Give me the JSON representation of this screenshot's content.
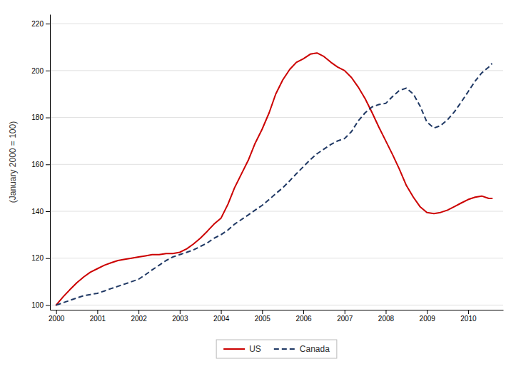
{
  "chart_data": {
    "type": "line",
    "ylabel": "(January 2000 = 100)",
    "x": [
      2000.0,
      2000.17,
      2000.33,
      2000.5,
      2000.67,
      2000.83,
      2001.0,
      2001.17,
      2001.33,
      2001.5,
      2001.67,
      2001.83,
      2002.0,
      2002.17,
      2002.33,
      2002.5,
      2002.67,
      2002.83,
      2003.0,
      2003.17,
      2003.33,
      2003.5,
      2003.67,
      2003.83,
      2004.0,
      2004.17,
      2004.33,
      2004.5,
      2004.67,
      2004.83,
      2005.0,
      2005.17,
      2005.33,
      2005.5,
      2005.67,
      2005.83,
      2006.0,
      2006.17,
      2006.33,
      2006.5,
      2006.67,
      2006.83,
      2007.0,
      2007.17,
      2007.33,
      2007.5,
      2007.67,
      2007.83,
      2008.0,
      2008.17,
      2008.33,
      2008.5,
      2008.67,
      2008.83,
      2009.0,
      2009.17,
      2009.33,
      2009.5,
      2009.67,
      2009.83,
      2010.0,
      2010.17,
      2010.33,
      2010.5,
      2010.58
    ],
    "series": [
      {
        "name": "US",
        "color": "#cc0000",
        "line_style": "solid",
        "values": [
          100.0,
          103.5,
          106.5,
          109.5,
          112.0,
          114.0,
          115.5,
          117.0,
          118.0,
          119.0,
          119.5,
          120.0,
          120.5,
          121.0,
          121.5,
          121.5,
          122.0,
          122.0,
          122.5,
          124.0,
          126.0,
          128.5,
          131.5,
          134.5,
          137.0,
          143.0,
          150.0,
          156.0,
          162.0,
          169.0,
          175.0,
          182.0,
          190.0,
          196.0,
          200.5,
          203.5,
          205.0,
          207.0,
          207.5,
          206.0,
          203.5,
          201.5,
          200.0,
          197.0,
          193.0,
          188.0,
          182.0,
          176.0,
          170.0,
          164.0,
          158.0,
          151.0,
          146.0,
          142.0,
          139.5,
          139.0,
          139.5,
          140.5,
          142.0,
          143.5,
          145.0,
          146.0,
          146.5,
          145.5,
          145.5
        ]
      },
      {
        "name": "Canada",
        "color": "#1f3864",
        "line_style": "dashed",
        "values": [
          100.0,
          101.0,
          102.0,
          103.0,
          104.0,
          104.5,
          105.0,
          106.0,
          107.0,
          108.0,
          109.0,
          110.0,
          111.0,
          113.0,
          115.0,
          117.0,
          119.0,
          120.5,
          121.5,
          122.5,
          123.5,
          125.0,
          126.5,
          128.5,
          130.0,
          132.0,
          134.5,
          136.5,
          138.5,
          140.5,
          142.5,
          145.0,
          147.5,
          150.0,
          153.0,
          156.0,
          159.0,
          162.0,
          164.5,
          166.5,
          168.5,
          170.0,
          171.0,
          174.0,
          178.5,
          182.0,
          184.5,
          185.5,
          186.0,
          189.0,
          191.5,
          192.5,
          190.0,
          185.0,
          178.0,
          175.5,
          176.5,
          179.0,
          182.5,
          186.5,
          191.0,
          195.5,
          199.0,
          201.5,
          203.0
        ]
      }
    ],
    "xlim": [
      1999.85,
      2010.85
    ],
    "xticks": [
      2000,
      2001,
      2002,
      2003,
      2004,
      2005,
      2006,
      2007,
      2008,
      2009,
      2010
    ],
    "ylim": [
      98,
      224
    ],
    "yticks": [
      100,
      120,
      140,
      160,
      180,
      200,
      220
    ],
    "grid": "y",
    "legend": "bottom"
  }
}
